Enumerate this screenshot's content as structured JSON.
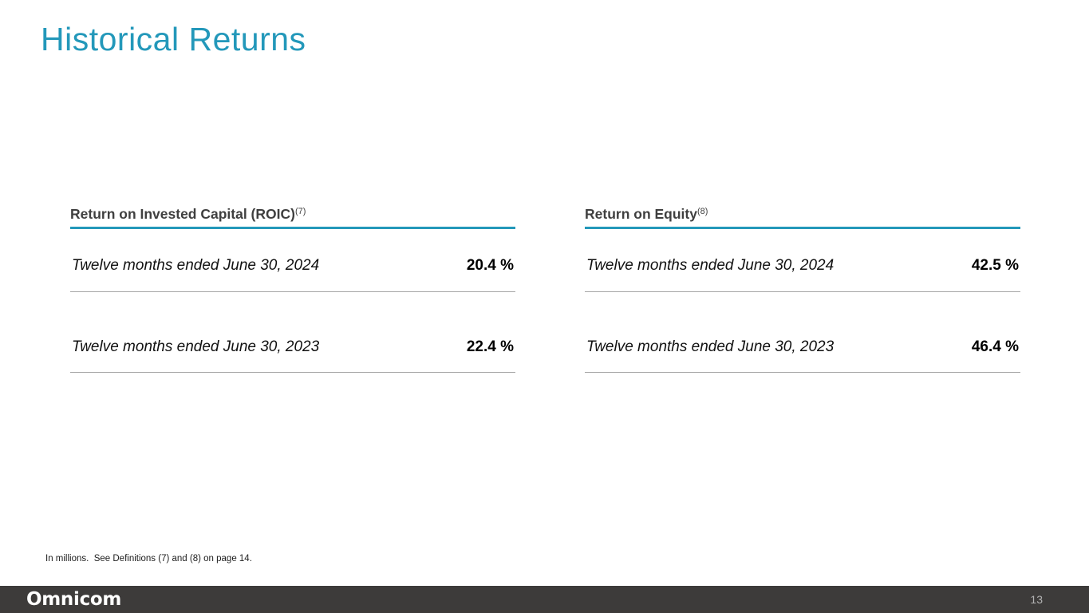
{
  "slide": {
    "title": "Historical Returns",
    "footnote": "In millions.  See Definitions (7) and (8) on page 14.",
    "logo_text": "Omnicom",
    "page_number": "13",
    "colors": {
      "accent_teal": "#2398ba",
      "footer_bg": "#3d3b3a",
      "divider_gray": "#a6a6a6",
      "header_gray": "#3f3f3f"
    },
    "tables": [
      {
        "title": "Return on Invested Capital (ROIC)",
        "title_superscript": "(7)",
        "rows": [
          {
            "label": "Twelve months ended June 30, 2024",
            "value": "20.4 %"
          },
          {
            "label": "Twelve months ended June 30, 2023",
            "value": "22.4 %"
          }
        ]
      },
      {
        "title": "Return on Equity",
        "title_superscript": "(8)",
        "rows": [
          {
            "label": "Twelve months ended June 30, 2024",
            "value": "42.5 %"
          },
          {
            "label": "Twelve months ended June 30, 2023",
            "value": "46.4 %"
          }
        ]
      }
    ]
  }
}
